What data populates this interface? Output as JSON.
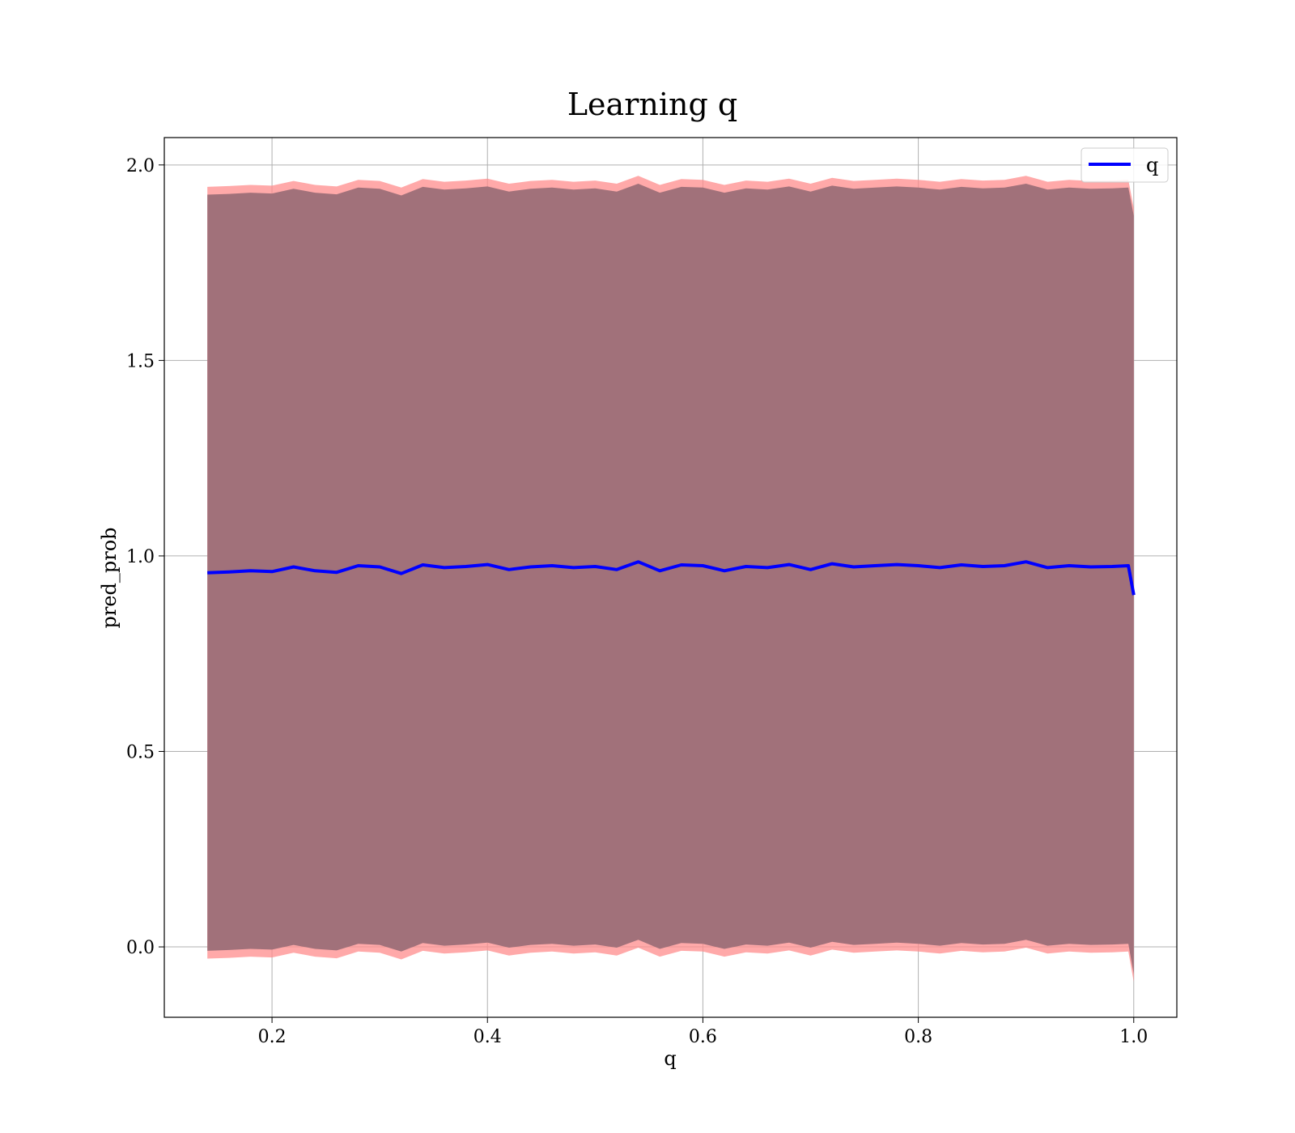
{
  "chart_data": {
    "type": "line",
    "title": "Learning q",
    "xlabel": "q",
    "ylabel": "pred_prob",
    "xlim": [
      0.1,
      1.04
    ],
    "ylim": [
      -0.18,
      2.07
    ],
    "xticks": [
      0.2,
      0.4,
      0.6,
      0.8,
      1.0
    ],
    "xtick_labels": [
      "0.2",
      "0.4",
      "0.6",
      "0.8",
      "1.0"
    ],
    "yticks": [
      0.0,
      0.5,
      1.0,
      1.5,
      2.0
    ],
    "ytick_labels": [
      "0.0",
      "0.5",
      "1.0",
      "1.5",
      "2.0"
    ],
    "grid": true,
    "legend": {
      "position": "top-right",
      "entries": [
        "q"
      ]
    },
    "colors": {
      "line": "#0000ff",
      "band_main": "#a1717a",
      "band_edge": "#ff8c8c"
    },
    "x": [
      0.14,
      0.16,
      0.18,
      0.2,
      0.22,
      0.24,
      0.26,
      0.28,
      0.3,
      0.32,
      0.34,
      0.36,
      0.38,
      0.4,
      0.42,
      0.44,
      0.46,
      0.48,
      0.5,
      0.52,
      0.54,
      0.56,
      0.58,
      0.6,
      0.62,
      0.64,
      0.66,
      0.68,
      0.7,
      0.72,
      0.74,
      0.76,
      0.78,
      0.8,
      0.82,
      0.84,
      0.86,
      0.88,
      0.9,
      0.92,
      0.94,
      0.96,
      0.98,
      0.995,
      1.0
    ],
    "series": [
      {
        "name": "q",
        "values": [
          0.957,
          0.959,
          0.962,
          0.96,
          0.972,
          0.962,
          0.958,
          0.975,
          0.972,
          0.955,
          0.977,
          0.97,
          0.973,
          0.978,
          0.965,
          0.972,
          0.975,
          0.97,
          0.973,
          0.965,
          0.985,
          0.962,
          0.977,
          0.975,
          0.962,
          0.973,
          0.97,
          0.978,
          0.965,
          0.98,
          0.972,
          0.975,
          0.978,
          0.975,
          0.97,
          0.977,
          0.973,
          0.975,
          0.985,
          0.97,
          0.975,
          0.972,
          0.973,
          0.975,
          0.9
        ],
        "band_lower": [
          -0.02,
          -0.018,
          -0.015,
          -0.017,
          -0.005,
          -0.015,
          -0.019,
          -0.002,
          -0.005,
          -0.022,
          0.0,
          -0.007,
          -0.004,
          0.001,
          -0.012,
          -0.005,
          -0.002,
          -0.007,
          -0.004,
          -0.012,
          0.008,
          -0.015,
          0.0,
          -0.002,
          -0.015,
          -0.004,
          -0.007,
          0.001,
          -0.012,
          0.003,
          -0.005,
          -0.002,
          0.001,
          -0.002,
          -0.007,
          0.0,
          -0.004,
          -0.002,
          0.008,
          -0.007,
          -0.002,
          -0.005,
          -0.004,
          -0.002,
          -0.08
        ],
        "band_upper": [
          1.934,
          1.936,
          1.939,
          1.937,
          1.949,
          1.939,
          1.935,
          1.952,
          1.949,
          1.932,
          1.954,
          1.947,
          1.95,
          1.955,
          1.942,
          1.949,
          1.952,
          1.947,
          1.95,
          1.942,
          1.962,
          1.939,
          1.954,
          1.952,
          1.939,
          1.95,
          1.947,
          1.955,
          1.942,
          1.957,
          1.949,
          1.952,
          1.955,
          1.952,
          1.947,
          1.954,
          1.95,
          1.952,
          1.962,
          1.947,
          1.952,
          1.949,
          1.95,
          1.952,
          1.88
        ]
      }
    ]
  }
}
